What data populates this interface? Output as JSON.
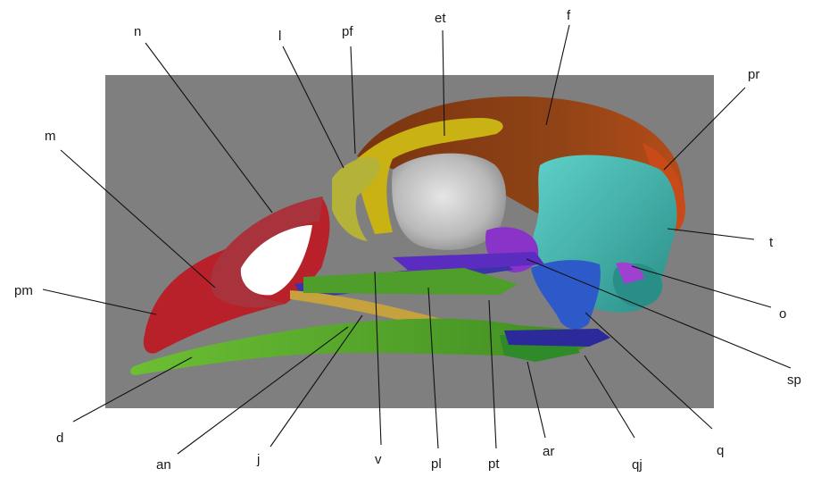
{
  "labels": {
    "n": "n",
    "l": "l",
    "pf": "pf",
    "et": "et",
    "f": "f",
    "pr": "pr",
    "m": "m",
    "pm": "pm",
    "t": "t",
    "o": "o",
    "sp": "sp",
    "d": "d",
    "an": "an",
    "j": "j",
    "v": "v",
    "pl": "pl",
    "pt": "pt",
    "ar": "ar",
    "qj": "qj",
    "q": "q"
  },
  "colors": {
    "background_panel": "#7f7f7f",
    "frontal_brown": "#8a3e12",
    "parietal_orange": "#c84a18",
    "ethmoid_yellow": "#c9b214",
    "lacrimal_olive": "#b5b23a",
    "orbit_gray": "#c8c8c8",
    "squamosal_teal": "#3fb7ad",
    "premaxilla_red": "#b8202a",
    "nasal_red": "#a8333c",
    "dentary_green": "#58a62a",
    "jugal_gold": "#c5a23e",
    "vomer_blue": "#3b33a8",
    "palatine_violet": "#5a2cc0",
    "pterygoid_violet": "#8a33c8",
    "quadrate_blue": "#2d5ac8",
    "articular_green": "#2f8a2a"
  }
}
